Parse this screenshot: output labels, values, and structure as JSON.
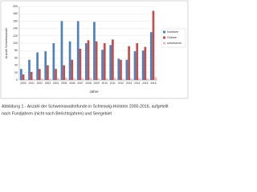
{
  "chart_data": {
    "type": "bar",
    "y_label": "Anzahl Schweinswale",
    "x_label": "Jahre",
    "categories": [
      "2000",
      "2001",
      "2002",
      "2003",
      "2004",
      "2005",
      "2006",
      "2007",
      "2008",
      "2009",
      "2010",
      "2011",
      "2012",
      "2013",
      "2014",
      "2015",
      "2016"
    ],
    "series": [
      {
        "name": "Nordsee",
        "color": "#4f81bd",
        "values": [
          30,
          55,
          75,
          78,
          100,
          160,
          105,
          160,
          100,
          158,
          82,
          95,
          58,
          55,
          78,
          80,
          130
        ]
      },
      {
        "name": "Ostsee",
        "color": "#c0504d",
        "values": [
          15,
          22,
          30,
          40,
          30,
          40,
          55,
          85,
          108,
          105,
          100,
          110,
          55,
          92,
          100,
          90,
          188
        ]
      },
      {
        "name": "unbekannt",
        "color": "#f2b8b8",
        "values": [
          2,
          3,
          4,
          3,
          5,
          6,
          4,
          5,
          6,
          5,
          4,
          6,
          3,
          4,
          5,
          4,
          8
        ]
      }
    ],
    "ylim": [
      0,
      200
    ],
    "yticks": [
      0,
      20,
      40,
      60,
      80,
      100,
      120,
      140,
      160,
      180,
      200
    ],
    "grid": true,
    "legend": "right",
    "caption": [
      "Abbildung 1 - Anzahl der Schweinswaltotfunde in Schleswig-Holstein 2000-2016, aufgeteilt",
      "nach Fundjahren (nicht nach Berichtsjahren) und Seegebiet"
    ]
  }
}
